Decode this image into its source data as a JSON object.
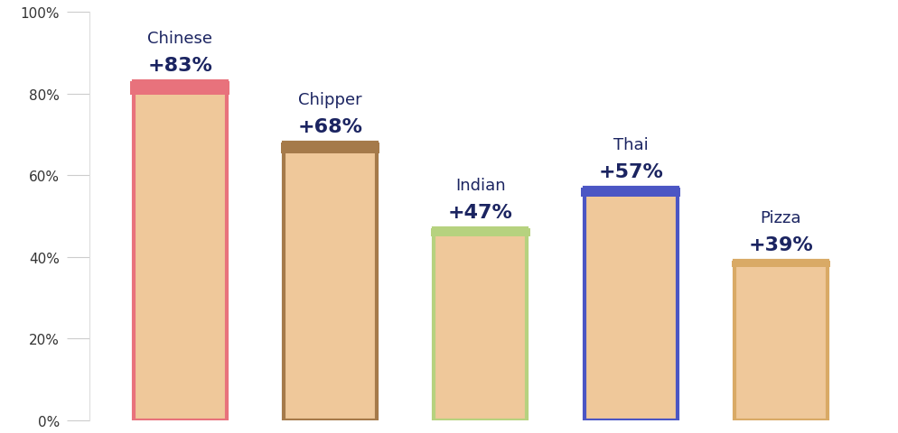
{
  "chart_data": {
    "type": "bar",
    "categories": [
      "Chinese",
      "Chipper",
      "Indian",
      "Thai",
      "Pizza"
    ],
    "values": [
      83,
      68,
      47,
      57,
      39
    ],
    "value_labels": [
      "+83%",
      "+68%",
      "+47%",
      "+57%",
      "+39%"
    ],
    "colors": [
      "#e8727c",
      "#a57a4a",
      "#b6d27f",
      "#4b56c4",
      "#d9aa66"
    ],
    "data_labels": true,
    "tick_labels": "y",
    "grid": false,
    "ylim": [
      0,
      100
    ],
    "yticks": [
      {
        "value": 0,
        "label": "0%"
      },
      {
        "value": 20,
        "label": "20%"
      },
      {
        "value": 40,
        "label": "40%"
      },
      {
        "value": 60,
        "label": "60%"
      },
      {
        "value": 80,
        "label": "80%"
      },
      {
        "value": 100,
        "label": "100%"
      }
    ]
  }
}
